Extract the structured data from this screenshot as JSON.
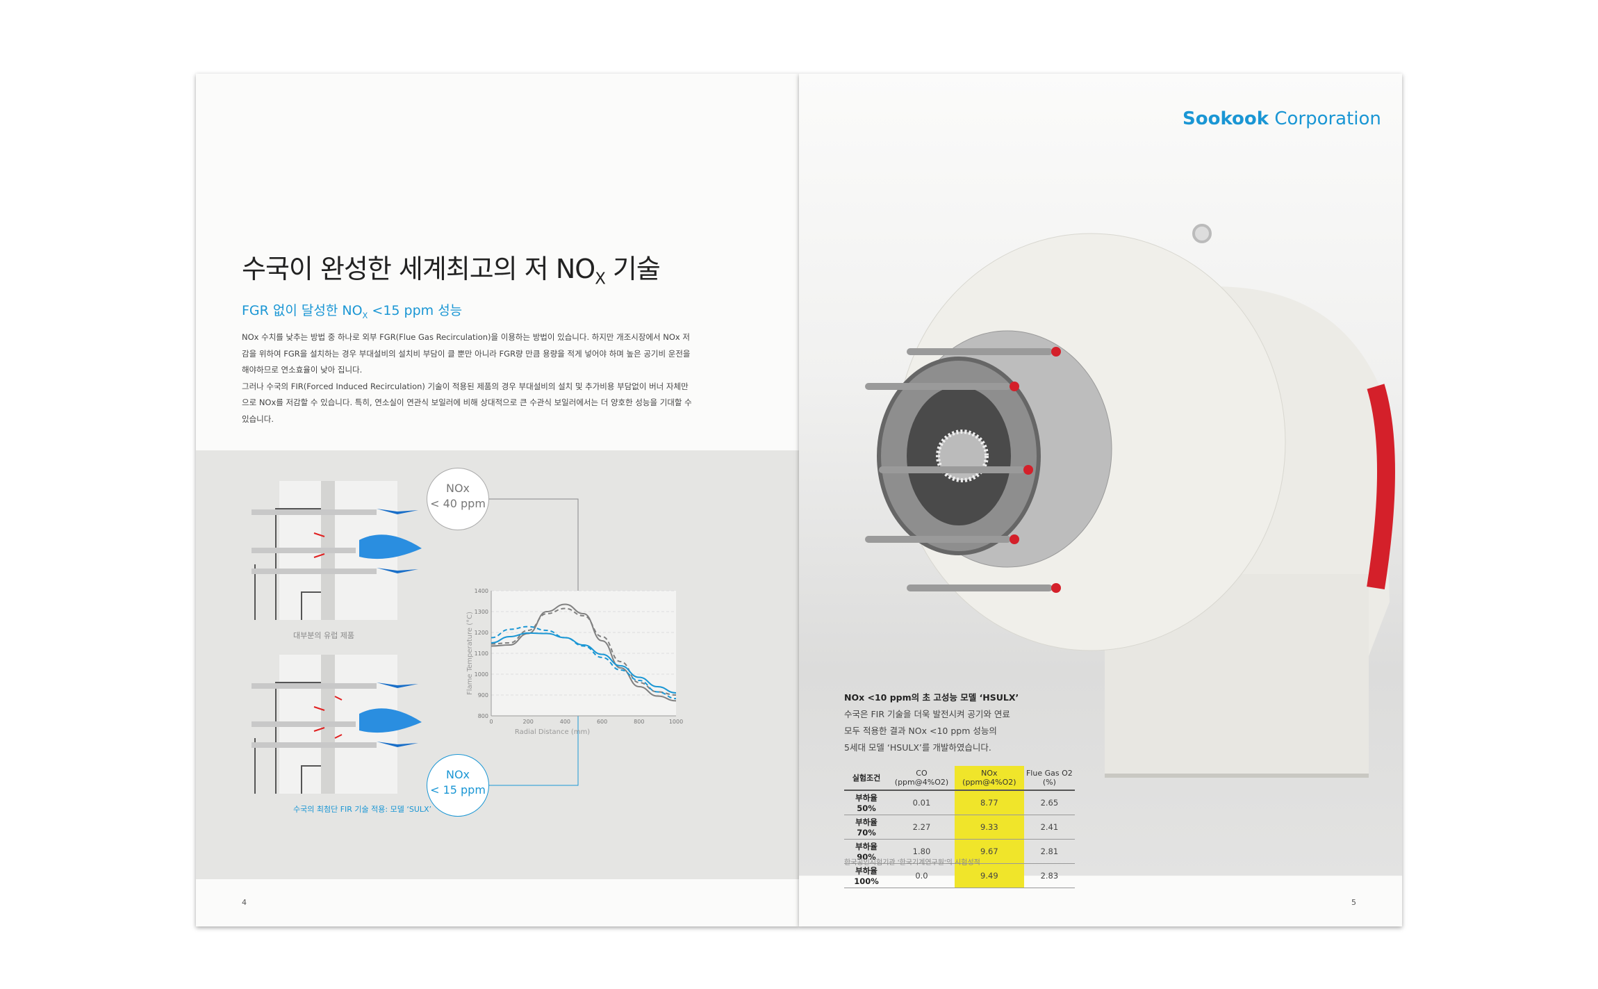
{
  "left_page": {
    "title": "수국이 완성한 세계최고의 저 NO",
    "title_sub": "X",
    "title_end": " 기술",
    "subtitle": "FGR 없이 달성한 NO",
    "subtitle_sub": "X",
    "subtitle_end": " <15 ppm 성능",
    "paragraph1": "NOx 수치를 낮추는 방법 중 하나로 외부 FGR(Flue Gas Recirculation)을 이용하는 방법이 있습니다. 하지만 개조시장에서 NOx 저감을 위하여 FGR을 설치하는 경우 부대설비의 설치비 부담이 클 뿐만 아니라 FGR량 만큼 용량을 적게 넣어야 하며 높은 공기비 운전을 해야하므로 연소효율이 낮아 집니다.",
    "paragraph2": "그러나 수국의 FIR(Forced Induced Recirculation) 기술이 적용된 제품의 경우 부대설비의 설치 및 추가비용 부담없이 버너 자체만으로 NOx를 저감할 수 있습니다. 특히, 연소실이 연관식 보일러에 비해 상대적으로 큰 수관식 보일러에서는 더 양호한 성능을 기대할 수 있습니다.",
    "diagram1_caption": "대부분의 유럽 제품",
    "diagram2_caption": "수국의 최첨단 FIR 기술 적용: 모델 ‘SULX’",
    "badge1": {
      "line1": "NOx",
      "line2": "< 40 ppm"
    },
    "badge2": {
      "line1": "NOx",
      "line2": "< 15 ppm"
    },
    "page_number": "4"
  },
  "chart_data": {
    "type": "line",
    "xlabel": "Radial Distance (mm)",
    "ylabel": "Flame Temperature (°C)",
    "xlim": [
      0,
      1000
    ],
    "ylim": [
      800,
      1400
    ],
    "grid": true,
    "x_ticks": [
      "0",
      "200",
      "400",
      "600",
      "800",
      "1000"
    ],
    "y_ticks": [
      "800",
      "900",
      "1000",
      "1100",
      "1200",
      "1300",
      "1400"
    ],
    "x": [
      0,
      100,
      200,
      300,
      400,
      500,
      600,
      700,
      800,
      900,
      1000
    ],
    "series": [
      {
        "color": "#808080",
        "style": "solid",
        "values": [
          1135,
          1140,
          1195,
          1300,
          1335,
          1290,
          1160,
          1030,
          940,
          895,
          872
        ]
      },
      {
        "color": "#808080",
        "style": "dashed",
        "values": [
          1145,
          1150,
          1210,
          1290,
          1315,
          1280,
          1180,
          1060,
          960,
          915,
          900
        ]
      },
      {
        "color": "#1a96d4",
        "style": "solid",
        "values": [
          1150,
          1180,
          1197,
          1195,
          1175,
          1140,
          1095,
          1040,
          985,
          940,
          910
        ]
      },
      {
        "color": "#1a96d4",
        "style": "dashed",
        "values": [
          1175,
          1215,
          1228,
          1210,
          1175,
          1135,
          1080,
          1020,
          970,
          915,
          883
        ]
      }
    ]
  },
  "right_page": {
    "logo_bold": "Sookook",
    "logo_light": " Corporation",
    "heading": "NOx <10 ppm의 초 고성능 모델 ‘HSULX’",
    "lines": [
      "수국은 FIR 기술을 더욱 발전시켜 공기와 연료",
      "모두 적용한 결과 NOx <10 ppm 성능의",
      "5세대 모델 ‘HSULX’를 개발하였습니다."
    ],
    "table": {
      "headers": [
        "실험조건",
        "CO (ppm@4%O2)",
        "NOx (ppm@4%O2)",
        "Flue Gas O2 (%)"
      ],
      "rows": [
        [
          "부하율 50%",
          "0.01",
          "8.77",
          "2.65"
        ],
        [
          "부하율 70%",
          "2.27",
          "9.33",
          "2.41"
        ],
        [
          "부하율 90%",
          "1.80",
          "9.67",
          "2.81"
        ],
        [
          "부하율 100%",
          "0.0",
          "9.49",
          "2.83"
        ]
      ]
    },
    "source": "한국공인시험기관 '한국기계연구원'의 시험성적",
    "page_number": "5"
  },
  "colors": {
    "accent": "#1a96d4",
    "highlight": "#f0e52a",
    "burner_body": "#eeeeea",
    "burner_red": "#d4202a"
  }
}
